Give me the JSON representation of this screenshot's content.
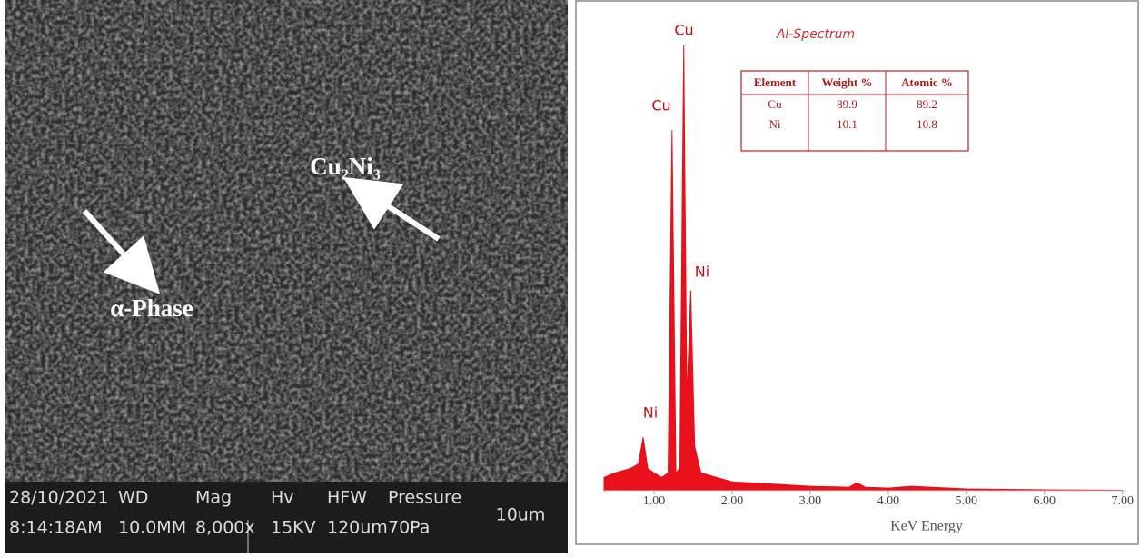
{
  "sem_image": {
    "labels": [
      "Cu₂Ni₃",
      "α-Phase"
    ],
    "info_bar": {
      "columns": [
        [
          "28/10/2021",
          "8:14:18AM"
        ],
        [
          "WD",
          "10.0MM"
        ],
        [
          "Mag",
          "8,000x"
        ],
        [
          "Hv",
          "15KV"
        ],
        [
          "HFW",
          "120um"
        ],
        [
          "Pressure",
          "70Pa"
        ]
      ],
      "scale": "10um"
    }
  },
  "chart_data": {
    "type": "area",
    "title": "Al-Spectrum",
    "x_label": "KeV Energy",
    "peak_labels": [
      "Cu",
      "Cu",
      "Ni",
      "Ni"
    ],
    "x": [
      0.36,
      0.5,
      0.7,
      0.8,
      0.86,
      0.92,
      1.0,
      1.1,
      1.18,
      1.23,
      1.28,
      1.33,
      1.38,
      1.42,
      1.47,
      1.52,
      1.6,
      1.8,
      2.0,
      2.5,
      3.0,
      3.5,
      3.6,
      3.7,
      4.0,
      4.3,
      5.0,
      6.0,
      7.0
    ],
    "series": [
      {
        "name": "Al-Spectrum",
        "color": "#e8101a",
        "values": [
          3,
          4,
          5,
          6,
          12,
          5,
          4,
          3,
          4,
          81,
          4,
          5,
          100,
          20,
          45,
          10,
          4,
          3,
          2,
          1.5,
          1,
          0.8,
          1.8,
          0.8,
          0.6,
          1,
          0.4,
          0.2,
          0.1
        ]
      }
    ],
    "xlim": [
      0.36,
      7.05
    ],
    "ylim": [
      0,
      100
    ],
    "xticks": [
      {
        "value": 1,
        "label": "1.00"
      },
      {
        "value": 2,
        "label": "2.00"
      },
      {
        "value": 3,
        "label": "3.00"
      },
      {
        "value": 4,
        "label": "4.00"
      },
      {
        "value": 5,
        "label": "5.00"
      },
      {
        "value": 6,
        "label": "6.00"
      },
      {
        "value": 7,
        "label": "7.00"
      }
    ],
    "table": {
      "header": [
        "Element",
        "Weight %",
        "Atomic %"
      ],
      "rows": [
        [
          "Cu",
          "89.9",
          "89.2"
        ],
        [
          "Ni",
          "10.1",
          "10.8"
        ]
      ]
    }
  }
}
